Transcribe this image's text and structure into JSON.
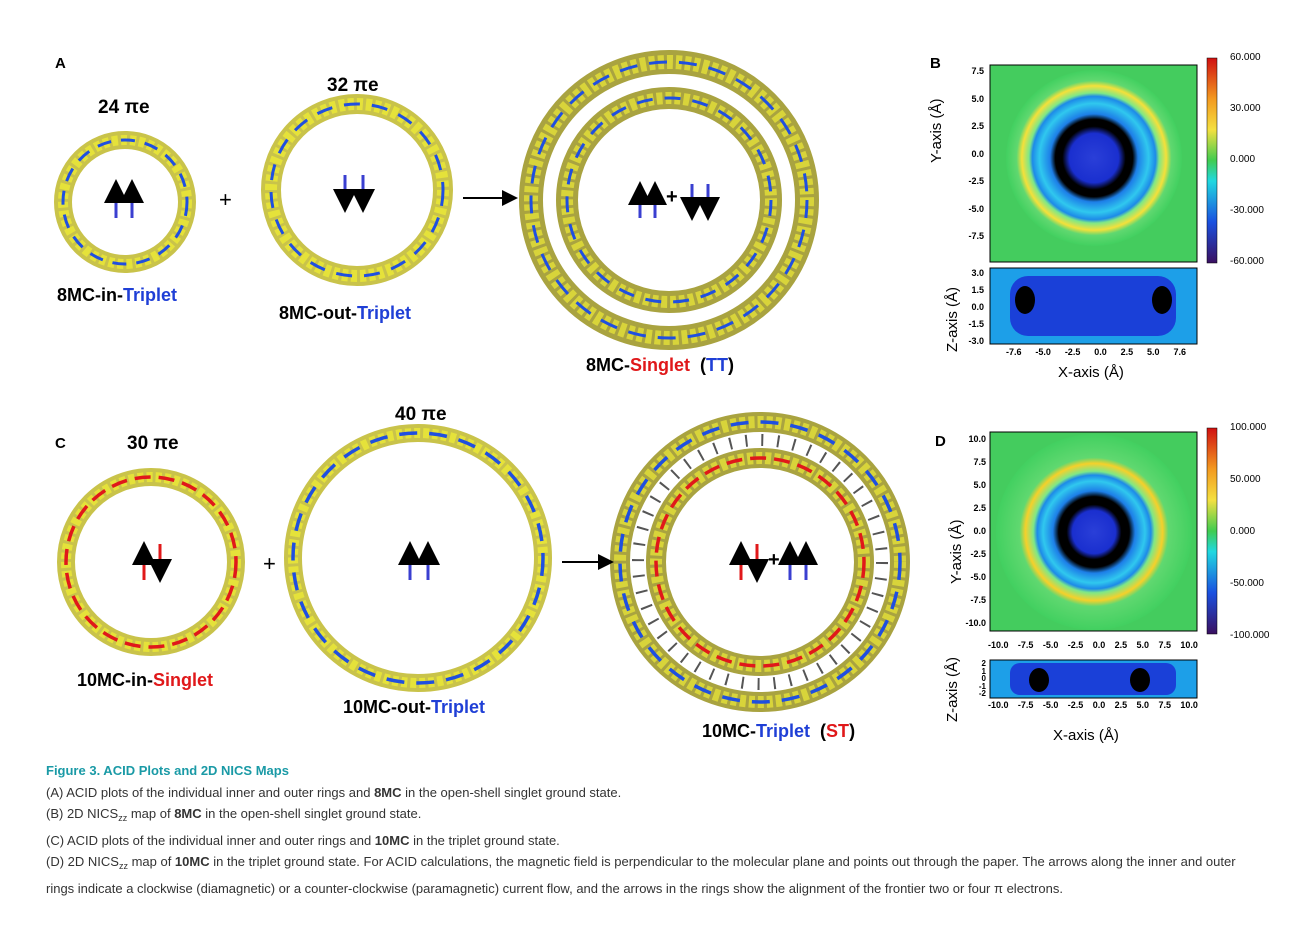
{
  "panelA": {
    "label": "A",
    "ring1_pe": "24 πe",
    "ring2_pe": "32 πe",
    "plus": "+",
    "ring1_name": {
      "a": "8MC-in-",
      "b": "Triplet"
    },
    "ring2_name": {
      "a": "8MC-out-",
      "b": "Triplet"
    },
    "ring3_name": {
      "a": "8MC-",
      "b": "Singlet",
      "c": "(",
      "d": "TT",
      "e": ")"
    },
    "mid_plus": "+"
  },
  "panelB": {
    "label": "B",
    "y_title": "Y-axis (Å)",
    "z_title": "Z-axis (Å)",
    "x_title": "X-axis (Å)",
    "y_ticks": [
      "7.5",
      "5.0",
      "2.5",
      "0.0",
      "-2.5",
      "-5.0",
      "-7.5"
    ],
    "z_ticks": [
      "3.0",
      "1.5",
      "0.0",
      "-1.5",
      "-3.0"
    ],
    "x_ticks": [
      "-7.6",
      "-5.0",
      "-2.5",
      "0.0",
      "2.5",
      "5.0",
      "7.6"
    ],
    "colorbar": [
      "60.000",
      "30.000",
      "0.000",
      "-30.000",
      "-60.000"
    ]
  },
  "panelC": {
    "label": "C",
    "ring1_pe": "30 πe",
    "ring2_pe": "40 πe",
    "plus": "+",
    "ring1_name": {
      "a": "10MC-in-",
      "b": "Singlet"
    },
    "ring2_name": {
      "a": "10MC-out-",
      "b": "Triplet"
    },
    "ring3_name": {
      "a": "10MC-",
      "b": "Triplet",
      "c": "(",
      "d": "ST",
      "e": ")"
    },
    "mid_plus": "+"
  },
  "panelD": {
    "label": "D",
    "y_title": "Y-axis (Å)",
    "z_title": "Z-axis (Å)",
    "x_title": "X-axis (Å)",
    "y_ticks": [
      "10.0",
      "7.5",
      "5.0",
      "2.5",
      "0.0",
      "-2.5",
      "-5.0",
      "-7.5",
      "-10.0"
    ],
    "z_ticks": [
      "2",
      "1",
      "0",
      "-1",
      "-2"
    ],
    "x_ticks": [
      "-10.0",
      "-7.5",
      "-5.0",
      "-2.5",
      "0.0",
      "2.5",
      "5.0",
      "7.5",
      "10.0"
    ],
    "colorbar": [
      "100.000",
      "50.000",
      "0.000",
      "-50.000",
      "-100.000"
    ]
  },
  "caption": {
    "title": "Figure 3. ACID Plots and 2D NICS Maps",
    "lineA_1": "(A) ACID plots of the individual inner and outer rings and ",
    "lineA_b": "8MC",
    "lineA_2": " in the open-shell singlet ground state.",
    "lineB_1": "(B) 2D NICS",
    "lineB_sub": "zz",
    "lineB_2": " map of ",
    "lineB_b": "8MC",
    "lineB_3": " in the open-shell singlet ground state.",
    "lineC_1": "(C) ACID plots of the individual inner and outer rings and ",
    "lineC_b": "10MC",
    "lineC_2": " in the triplet ground state.",
    "lineD_1": "(D) 2D NICS",
    "lineD_sub": "zz",
    "lineD_2": " map of ",
    "lineD_b": "10MC",
    "lineD_3": " in the triplet ground state. For ACID calculations, the magnetic field is perpendicular to the molecular plane and points out through the paper. The arrows along the inner and outer rings indicate a clockwise (diamagnetic) or a counter-clockwise (paramagnetic) current flow, and the arrows in the rings show the alignment of the frontier two or four π electrons."
  }
}
